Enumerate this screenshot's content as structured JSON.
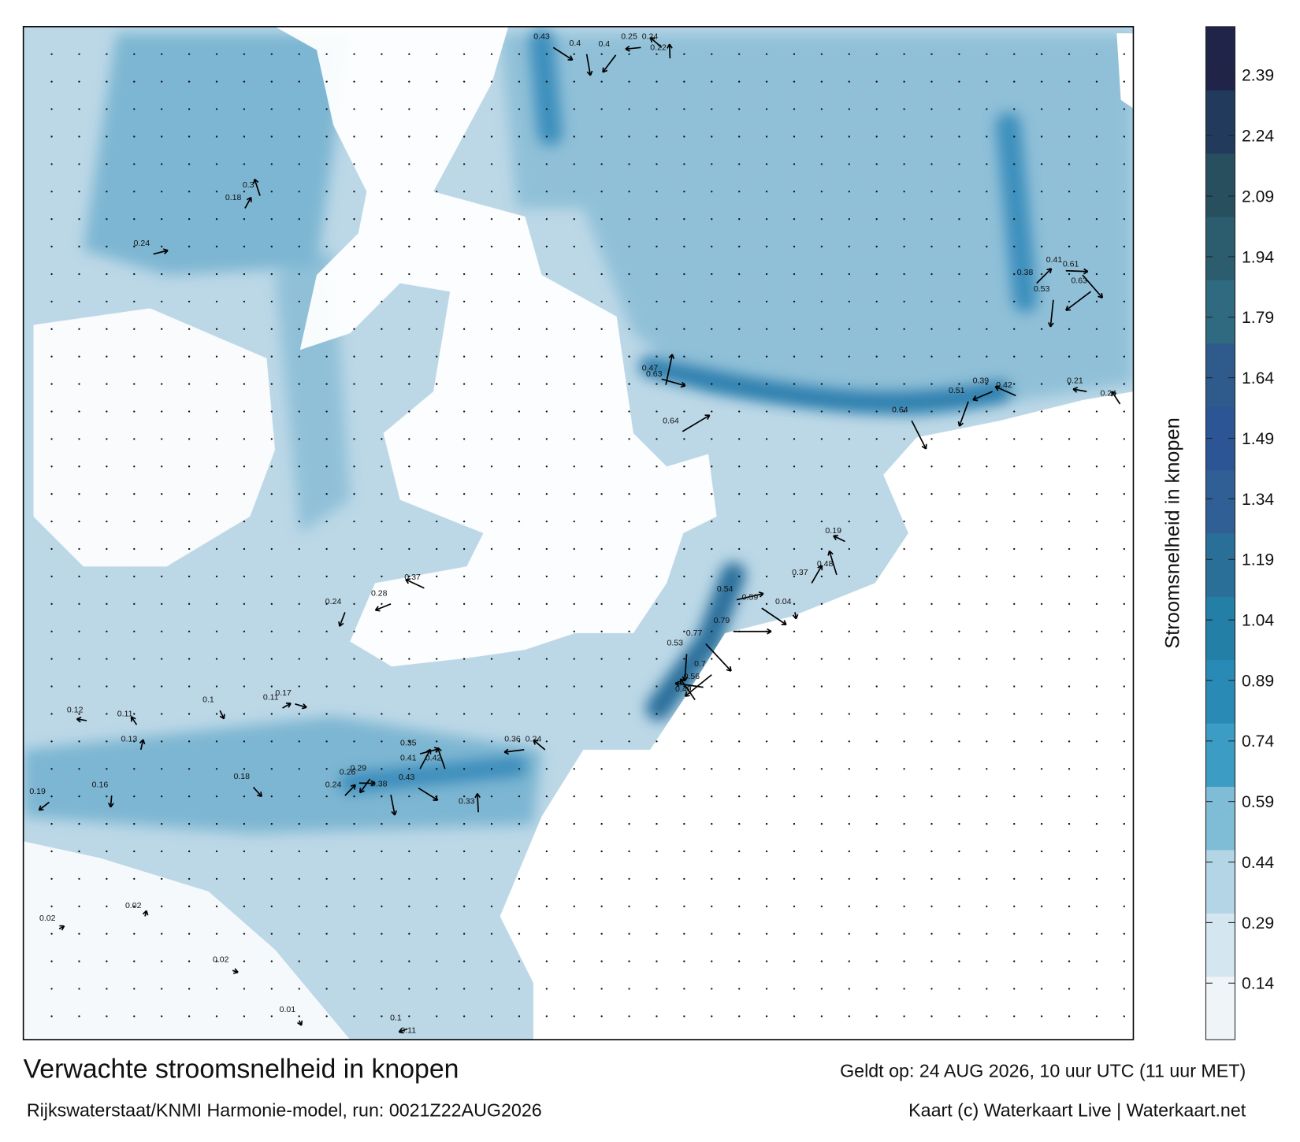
{
  "map": {
    "title": "Verwachte stroomsnelheid in knopen",
    "valid": "Geldt op: 24 AUG 2026, 10 uur UTC (11 uur MET)",
    "source": "Rijkswaterstaat/KNMI Harmonie-model, run: 0021Z22AUG2026",
    "credit": "Kaart (c) Waterkaart Live | Waterkaart.net",
    "current_labels": [
      0.79,
      0.77,
      0.53,
      0.7,
      0.56,
      0.49,
      0.63,
      0.64,
      0.47,
      0.64,
      0.51,
      0.39,
      0.42,
      0.42,
      0.41,
      0.35,
      0.43,
      0.38,
      0.29,
      0.36,
      0.24,
      0.33,
      0.24,
      0.26,
      0.18,
      0.16,
      0.19,
      0.12,
      0.11,
      0.13,
      0.11,
      0.17,
      0.1,
      0.24,
      0.28,
      0.37,
      0.3,
      0.18,
      0.24,
      0.43,
      0.4,
      0.4,
      0.25,
      0.24,
      0.22,
      0.38,
      0.41,
      0.61,
      0.53,
      0.63,
      0.21,
      0.24,
      0.02,
      0.02,
      0.02,
      0.01,
      0.11,
      0.1,
      0.19,
      0.48,
      0.37,
      0.54,
      0.59,
      0.04
    ]
  },
  "colorbar": {
    "label": "Stroomsnelheid in knopen",
    "lim": [
      0,
      2.51
    ],
    "ticks": [
      0.14,
      0.29,
      0.44,
      0.59,
      0.74,
      0.89,
      1.04,
      1.19,
      1.34,
      1.49,
      1.64,
      1.79,
      1.94,
      2.09,
      2.24,
      2.39
    ],
    "colors": [
      "#eef4f8",
      "#d4e6ef",
      "#b3d5e5",
      "#7fbcd6",
      "#3d9cc4",
      "#2a8ab6",
      "#237fa6",
      "#2a6f97",
      "#2f5f95",
      "#2c5595",
      "#2e5a8c",
      "#2f6a80",
      "#2c5d6e",
      "#274f5e",
      "#223a5c",
      "#1f2448"
    ]
  }
}
